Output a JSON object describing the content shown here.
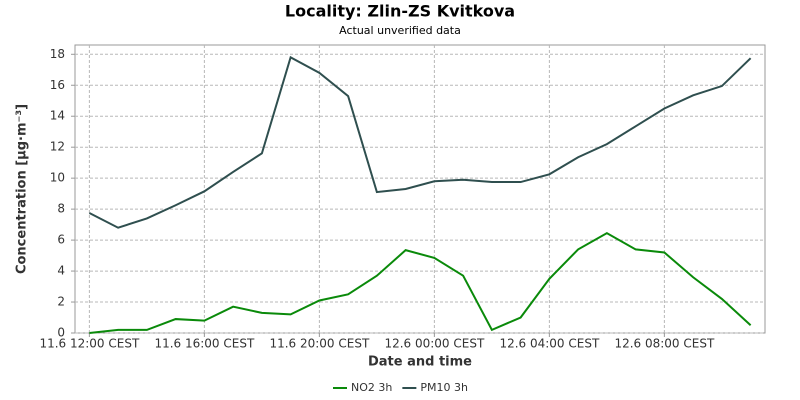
{
  "chart_data": {
    "type": "line",
    "title": "Locality: Zlin-ZS Kvitkova",
    "subtitle": "Actual unverified data",
    "x_label": "Date and time",
    "y_label": "Concentration [µg·m⁻³]",
    "categories": [
      "11.6 12:00 CEST",
      null,
      null,
      null,
      "11.6 16:00 CEST",
      null,
      null,
      null,
      "11.6 20:00 CEST",
      null,
      null,
      null,
      "12.6 00:00 CEST",
      null,
      null,
      null,
      "12.6 04:00 CEST",
      null,
      null,
      null,
      "12.6 08:00 CEST",
      null,
      null,
      null
    ],
    "series": [
      {
        "name": "NO2 3h",
        "color": "#0a8a0a",
        "values": [
          0,
          0.2,
          0.2,
          0.9,
          0.8,
          1.7,
          1.3,
          1.2,
          2.1,
          2.5,
          3.7,
          5.35,
          4.85,
          3.7,
          0.2,
          1.0,
          3.5,
          5.4,
          6.45,
          5.4,
          5.2,
          3.6,
          2.2,
          0.5
        ]
      },
      {
        "name": "PM10 3h",
        "color": "#2f4f4f",
        "values": [
          7.75,
          6.8,
          7.4,
          8.25,
          9.15,
          10.4,
          11.6,
          17.8,
          16.8,
          15.3,
          9.1,
          9.3,
          9.8,
          9.9,
          9.75,
          9.75,
          10.25,
          11.35,
          12.2,
          13.35,
          14.5,
          15.35,
          15.95,
          17.75
        ]
      }
    ],
    "ylim": [
      0,
      18.6
    ],
    "yticks": [
      0,
      2,
      4,
      6,
      8,
      10,
      12,
      14,
      16,
      18
    ],
    "grid": true,
    "legend": "bottom"
  }
}
